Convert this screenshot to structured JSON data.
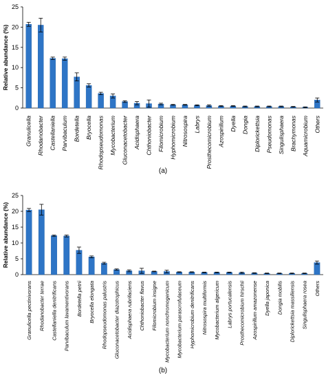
{
  "colors": {
    "bar": "#2E75C6",
    "bar_edge": "#1F5FA8",
    "axis": "#000000",
    "text": "#000000"
  },
  "chart_data": [
    {
      "type": "bar",
      "panel_label": "(a)",
      "ylabel": "Relative abundance (%)",
      "ylim": [
        0,
        25
      ],
      "yticks": [
        0,
        5,
        10,
        15,
        20,
        25
      ],
      "grid": false,
      "legend": "none",
      "categories": [
        "Granulicella",
        "Rhodanobacter",
        "Castellaniella",
        "Parvibaculum",
        "Bordetella",
        "Bryocella",
        "Rhodopseudomonas",
        "Mycobacterium",
        "Gluconacetobacter",
        "Acidisphaera",
        "Chthoniobacter",
        "Filomicrobium",
        "Hyphomicrobium",
        "Nitrosospira",
        "Labrys",
        "Prosthecomicrobium",
        "Azospirillum",
        "Dyella",
        "Dongia",
        "Diplorickettsia",
        "Pseudomonas",
        "Singulisphaera",
        "Brachymonas",
        "Aquamicrobium",
        "Others"
      ],
      "values": [
        20.7,
        20.5,
        12.3,
        12.2,
        7.7,
        5.6,
        3.6,
        3.0,
        1.6,
        1.2,
        1.1,
        1.0,
        0.8,
        0.8,
        0.7,
        0.6,
        0.5,
        0.5,
        0.4,
        0.4,
        0.4,
        0.4,
        0.3,
        0.2,
        2.0
      ],
      "errors": [
        0.5,
        1.7,
        0.3,
        0.4,
        1.0,
        0.4,
        0.3,
        0.5,
        0.2,
        0.4,
        0.9,
        0.2,
        0.1,
        0.1,
        0.1,
        0.2,
        0.1,
        0.1,
        0.1,
        0.1,
        0.1,
        0.1,
        0.1,
        0.1,
        0.5
      ]
    },
    {
      "type": "bar",
      "panel_label": "(b)",
      "ylabel": "Relative abundance (%)",
      "ylim": [
        0,
        25
      ],
      "yticks": [
        0,
        5,
        10,
        15,
        20,
        25
      ],
      "grid": false,
      "legend": "none",
      "categories": [
        "Granulicella pectinivorans",
        "Rhodanobacter terrae",
        "Castellaniella denitrificans",
        "Parvibaculum lavamentivorans",
        "Bordetella petrii",
        "Bryocella elongata",
        "Rhodopseudomonas palustris",
        "Gluconacetobacter diazotrophicus",
        "Acidisphaera rubrifaciens",
        "Chthoniobacter flavus",
        "Filomicrobium insigne",
        "Mycobacterium nonchromogenicum",
        "Mycobacterium parascrofulaceum",
        "Hyphomicrobium denitrificans",
        "Nitrosospira multiformis",
        "Mycobacterium algericum",
        "Labrys portucalensis",
        "Prosthecomicrobium hirschii",
        "Azospirillum amazonense",
        "Dyella japonica",
        "Dongia mobilis",
        "Diplorickettsia massiliensis",
        "Singulisphaera rosea",
        "Others"
      ],
      "values": [
        20.4,
        20.5,
        12.3,
        12.2,
        7.7,
        5.6,
        3.6,
        1.6,
        1.2,
        1.2,
        1.0,
        1.0,
        0.8,
        0.8,
        0.7,
        0.7,
        0.7,
        0.6,
        0.5,
        0.4,
        0.4,
        0.4,
        0.4,
        3.8
      ],
      "errors": [
        0.5,
        1.7,
        0.2,
        0.3,
        1.0,
        0.3,
        0.3,
        0.2,
        0.3,
        0.8,
        0.1,
        0.4,
        0.1,
        0.1,
        0.1,
        0.1,
        0.1,
        0.2,
        0.1,
        0.1,
        0.1,
        0.1,
        0.1,
        0.5
      ]
    }
  ]
}
